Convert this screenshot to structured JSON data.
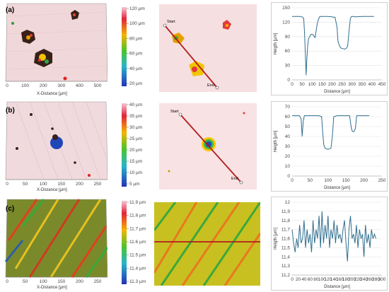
{
  "rows": [
    {
      "label": "(a)",
      "map_x_ticks": [
        "0",
        "100",
        "200",
        "300",
        "400",
        "500"
      ],
      "map_x_label": "X-Distance [µm]",
      "scale_ticks": [
        "120 µm",
        "100 µm",
        "80 µm",
        "60 µm",
        "40 µm",
        "20 µm"
      ],
      "start_label": "Start",
      "end_label": "End"
    },
    {
      "label": "(b)",
      "map_x_ticks": [
        "0",
        "50",
        "100",
        "150",
        "200",
        "250"
      ],
      "map_x_label": "X-Distance [µm]",
      "scale_ticks": [
        "40 µm",
        "35 µm",
        "30 µm",
        "25 µm",
        "20 µm",
        "15 µm",
        "10 µm",
        "5 µm"
      ],
      "start_label": "Start",
      "end_label": "End"
    },
    {
      "label": "(c)",
      "map_x_ticks": [
        "0",
        "50",
        "100",
        "150",
        "200",
        "250"
      ],
      "map_x_label": "X-Distance [µm]",
      "scale_ticks": [
        "11.9 µm",
        "11.8 µm",
        "11.7 µm",
        "11.6 µm",
        "11.5 µm",
        "11.4 µm",
        "11.3 µm"
      ],
      "start_label": "",
      "end_label": ""
    }
  ],
  "chart_data": [
    {
      "type": "line",
      "xlabel": "Distance [µm]",
      "ylabel": "Heigth [µm]",
      "xlim": [
        0,
        450
      ],
      "ylim": [
        0,
        150
      ],
      "xticks": [
        0,
        50,
        100,
        150,
        200,
        250,
        300,
        350,
        400,
        450
      ],
      "yticks": [
        0,
        30,
        60,
        90,
        120,
        150
      ],
      "color": "#2f6e8e",
      "series": [
        {
          "x": [
            0,
            40,
            50,
            58,
            62,
            66,
            70,
            74,
            78,
            82,
            88,
            95,
            105,
            115,
            125,
            132,
            138,
            142,
            150,
            160,
            180,
            200,
            215,
            225,
            230,
            238,
            245,
            255,
            265,
            272,
            278,
            285,
            292,
            298,
            305,
            320,
            350,
            380,
            410
          ],
          "y": [
            132,
            132,
            131,
            128,
            100,
            60,
            10,
            45,
            70,
            85,
            90,
            95,
            94,
            88,
            115,
            126,
            131,
            132,
            132,
            132,
            132,
            131,
            130,
            110,
            80,
            70,
            66,
            65,
            64,
            66,
            70,
            100,
            128,
            132,
            132,
            131,
            132,
            132,
            132
          ]
        }
      ]
    },
    {
      "type": "line",
      "xlabel": "Distance [µm]",
      "ylabel": "Heigth [µm]",
      "xlim": [
        0,
        250
      ],
      "ylim": [
        0,
        70
      ],
      "xticks": [
        0,
        50,
        100,
        150,
        200,
        250
      ],
      "yticks": [
        0,
        10,
        20,
        30,
        40,
        50,
        60,
        70
      ],
      "color": "#2f6e8e",
      "series": [
        {
          "x": [
            0,
            10,
            20,
            25,
            28,
            31,
            34,
            40,
            60,
            75,
            82,
            85,
            88,
            92,
            100,
            108,
            112,
            116,
            125,
            145,
            160,
            165,
            168,
            172,
            176,
            180,
            200,
            215
          ],
          "y": [
            61,
            61,
            61,
            58,
            40,
            55,
            61,
            61,
            61,
            61,
            60,
            45,
            32,
            28,
            27,
            28,
            40,
            60,
            61,
            61,
            61,
            48,
            45,
            45,
            48,
            61,
            61,
            61
          ]
        }
      ]
    },
    {
      "type": "line",
      "xlabel": "Distance [µm]",
      "ylabel": "Heigth [µm]",
      "xlim": [
        0,
        300
      ],
      "ylim": [
        11.2,
        12.0
      ],
      "xticks": [
        0,
        20,
        40,
        60,
        80,
        100,
        120,
        140,
        160,
        180,
        200,
        220,
        240,
        260,
        280,
        300
      ],
      "ytick_labels": [
        "11,2",
        "11,3",
        "11,4",
        "11,5",
        "11,6",
        "11,7",
        "11,8",
        "11,9",
        "12"
      ],
      "yticks": [
        11.2,
        11.3,
        11.4,
        11.5,
        11.6,
        11.7,
        11.8,
        11.9,
        12.0
      ],
      "color": "#2f6e8e",
      "series": [
        {
          "x": [
            0,
            5,
            10,
            15,
            20,
            25,
            30,
            35,
            40,
            45,
            50,
            55,
            60,
            65,
            70,
            75,
            80,
            85,
            90,
            95,
            100,
            105,
            110,
            115,
            120,
            125,
            130,
            135,
            140,
            145,
            150,
            155,
            160,
            165,
            170,
            175,
            180,
            185,
            190,
            195,
            200,
            205,
            210,
            215,
            220,
            225,
            230,
            235,
            240,
            245,
            250,
            255,
            260,
            265,
            270,
            275,
            280
          ],
          "y": [
            11.7,
            11.55,
            11.45,
            11.6,
            11.5,
            11.75,
            11.55,
            11.6,
            11.8,
            11.5,
            11.7,
            11.55,
            11.65,
            11.45,
            11.8,
            11.55,
            11.7,
            11.6,
            11.85,
            11.5,
            11.9,
            11.55,
            11.75,
            11.6,
            11.85,
            11.5,
            11.7,
            11.6,
            11.8,
            11.55,
            11.75,
            11.6,
            11.65,
            11.55,
            11.7,
            11.8,
            11.55,
            11.35,
            11.7,
            11.85,
            11.6,
            11.65,
            11.55,
            11.75,
            11.5,
            11.7,
            11.6,
            11.65,
            11.4,
            11.75,
            11.55,
            11.65,
            11.5,
            11.7,
            11.6,
            11.65,
            11.6
          ]
        }
      ]
    }
  ]
}
